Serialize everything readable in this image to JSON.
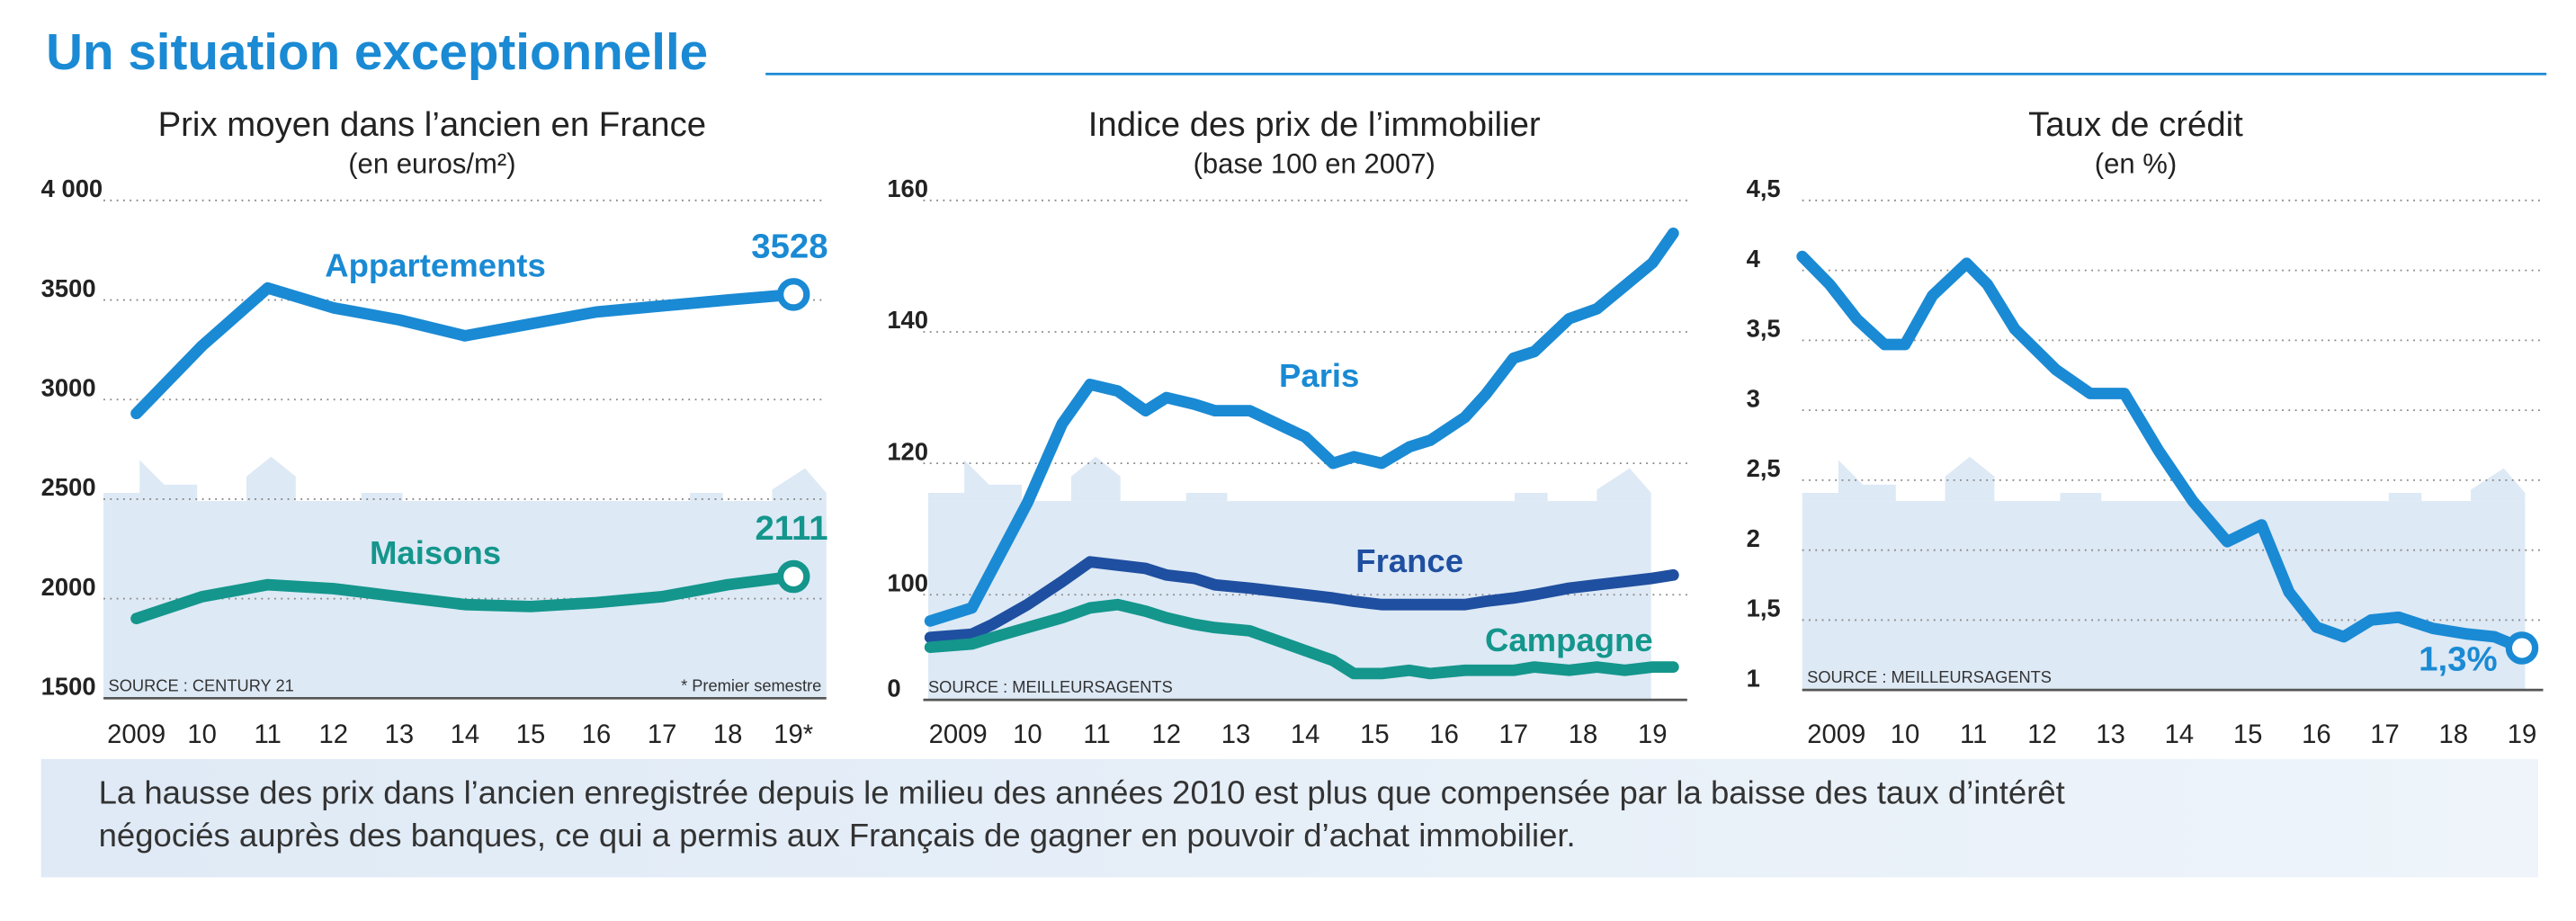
{
  "title": "Un situation exceptionnelle",
  "caption": [
    "La hausse des prix dans l’ancien enregistrée depuis le milieu des années 2010 est plus que compensée par la baisse des taux d’intérêt",
    "négociés auprès des banques, ce qui a permis aux Français de gagner en pouvoir d’achat immobilier."
  ],
  "chart_data": [
    {
      "type": "line",
      "title": "Prix moyen dans l’ancien en France",
      "subtitle": "(en euros/m²)",
      "source": "SOURCE : CENTURY 21",
      "note": "* Premier semestre",
      "categories": [
        "2009",
        "10",
        "11",
        "12",
        "13",
        "14",
        "15",
        "16",
        "17",
        "18",
        "19*"
      ],
      "ylim": [
        1500,
        4000
      ],
      "yticks": [
        1500,
        2000,
        2500,
        3000,
        3500,
        {
          "value": 4000,
          "label": "4 000"
        }
      ],
      "grid": true,
      "series": [
        {
          "name": "Appartements",
          "color": "#1a8ad4",
          "end_label": true,
          "values": [
            2930,
            3270,
            3560,
            3460,
            3400,
            3320,
            3380,
            3440,
            3470,
            3500,
            3528
          ]
        },
        {
          "name": "Maisons",
          "color": "#14968c",
          "end_label": true,
          "values": [
            1900,
            2010,
            2070,
            2050,
            2010,
            1970,
            1960,
            1980,
            2010,
            2070,
            2111
          ]
        }
      ]
    },
    {
      "type": "line",
      "title": "Indice des prix de l’immobilier",
      "subtitle": "(base 100 en 2007)",
      "source": "SOURCE : MEILLEURSAGENTS",
      "x": [
        2008.6,
        2009.2,
        2009.5,
        2010.0,
        2010.5,
        2010.9,
        2011.3,
        2011.7,
        2012.0,
        2012.4,
        2012.7,
        2013.2,
        2013.6,
        2014.0,
        2014.4,
        2014.7,
        2015.1,
        2015.5,
        2015.8,
        2016.3,
        2016.6,
        2017.0,
        2017.3,
        2017.8,
        2018.2,
        2018.6,
        2019.0,
        2019.3
      ],
      "xlim": [
        2008.5,
        2019.5
      ],
      "xticks": [
        {
          "value": 2009,
          "label": "2009"
        },
        {
          "value": 2010,
          "label": "10"
        },
        {
          "value": 2011,
          "label": "11"
        },
        {
          "value": 2012,
          "label": "12"
        },
        {
          "value": 2013,
          "label": "13"
        },
        {
          "value": 2014,
          "label": "14"
        },
        {
          "value": 2015,
          "label": "15"
        },
        {
          "value": 2016,
          "label": "16"
        },
        {
          "value": 2017,
          "label": "17"
        },
        {
          "value": 2018,
          "label": "18"
        },
        {
          "value": 2019,
          "label": "19"
        }
      ],
      "ylim": [
        84,
        160
      ],
      "axis_break": true,
      "yticks": [
        0,
        100,
        120,
        140,
        160
      ],
      "grid": true,
      "series": [
        {
          "name": "Paris",
          "color": "#1a8ad4",
          "values": [
            96,
            98,
            104,
            114,
            126,
            132,
            131,
            128,
            130,
            129,
            128,
            128,
            126,
            124,
            120,
            121,
            120,
            122.5,
            123.5,
            127,
            130.5,
            136,
            137,
            142,
            143.5,
            147,
            150.5,
            155
          ]
        },
        {
          "name": "France",
          "color": "#1f4fa0",
          "values": [
            93.5,
            94,
            95.5,
            98.5,
            102,
            105,
            104.5,
            104,
            103,
            102.5,
            101.5,
            101,
            100.5,
            100,
            99.5,
            99,
            98.5,
            98.5,
            98.5,
            98.5,
            99,
            99.5,
            100,
            101,
            101.5,
            102,
            102.5,
            103
          ]
        },
        {
          "name": "Campagne",
          "color": "#14968c",
          "values": [
            92,
            92.5,
            93.5,
            95,
            96.5,
            98,
            98.5,
            97.5,
            96.5,
            95.5,
            95,
            94.5,
            93,
            91.5,
            90,
            88,
            88,
            88.5,
            88,
            88.5,
            88.5,
            88.5,
            89,
            88.5,
            89,
            88.5,
            89,
            89
          ]
        }
      ]
    },
    {
      "type": "line",
      "title": "Taux de crédit",
      "subtitle": "(en %)",
      "source": "SOURCE : MEILLEURSAGENTS",
      "x": [
        2008.5,
        2008.9,
        2009.3,
        2009.7,
        2010.0,
        2010.4,
        2010.9,
        2011.2,
        2011.6,
        2012.2,
        2012.7,
        2013.2,
        2013.7,
        2014.2,
        2014.7,
        2015.2,
        2015.6,
        2016.0,
        2016.4,
        2016.8,
        2017.2,
        2017.7,
        2018.2,
        2018.6,
        2019.0
      ],
      "xlim": [
        2008.5,
        2019.5
      ],
      "xticks": [
        {
          "value": 2009,
          "label": "2009"
        },
        {
          "value": 2010,
          "label": "10"
        },
        {
          "value": 2011,
          "label": "11"
        },
        {
          "value": 2012,
          "label": "12"
        },
        {
          "value": 2013,
          "label": "13"
        },
        {
          "value": 2014,
          "label": "14"
        },
        {
          "value": 2015,
          "label": "15"
        },
        {
          "value": 2016,
          "label": "16"
        },
        {
          "value": 2017,
          "label": "17"
        },
        {
          "value": 2018,
          "label": "18"
        },
        {
          "value": 2019,
          "label": "19"
        }
      ],
      "ylim": [
        1,
        4.5
      ],
      "yticks": [
        1,
        {
          "value": 1.5,
          "label": "1,5"
        },
        2,
        {
          "value": 2.5,
          "label": "2,5"
        },
        3,
        {
          "value": 3.5,
          "label": "3,5"
        },
        4,
        {
          "value": 4.5,
          "label": "4,5"
        }
      ],
      "grid": true,
      "series": [
        {
          "name": "Taux de crédit",
          "color": "#1a8ad4",
          "end_label": true,
          "values": [
            4.1,
            3.9,
            3.65,
            3.47,
            3.47,
            3.82,
            4.05,
            3.9,
            3.58,
            3.29,
            3.12,
            3.12,
            2.71,
            2.35,
            2.06,
            2.18,
            1.7,
            1.45,
            1.38,
            1.5,
            1.52,
            1.44,
            1.4,
            1.38,
            1.3
          ],
          "value_labels": [
            null,
            null,
            null,
            null,
            null,
            null,
            null,
            null,
            null,
            null,
            null,
            null,
            null,
            null,
            null,
            null,
            null,
            null,
            null,
            null,
            null,
            null,
            null,
            null,
            "1,3%"
          ]
        }
      ]
    }
  ]
}
